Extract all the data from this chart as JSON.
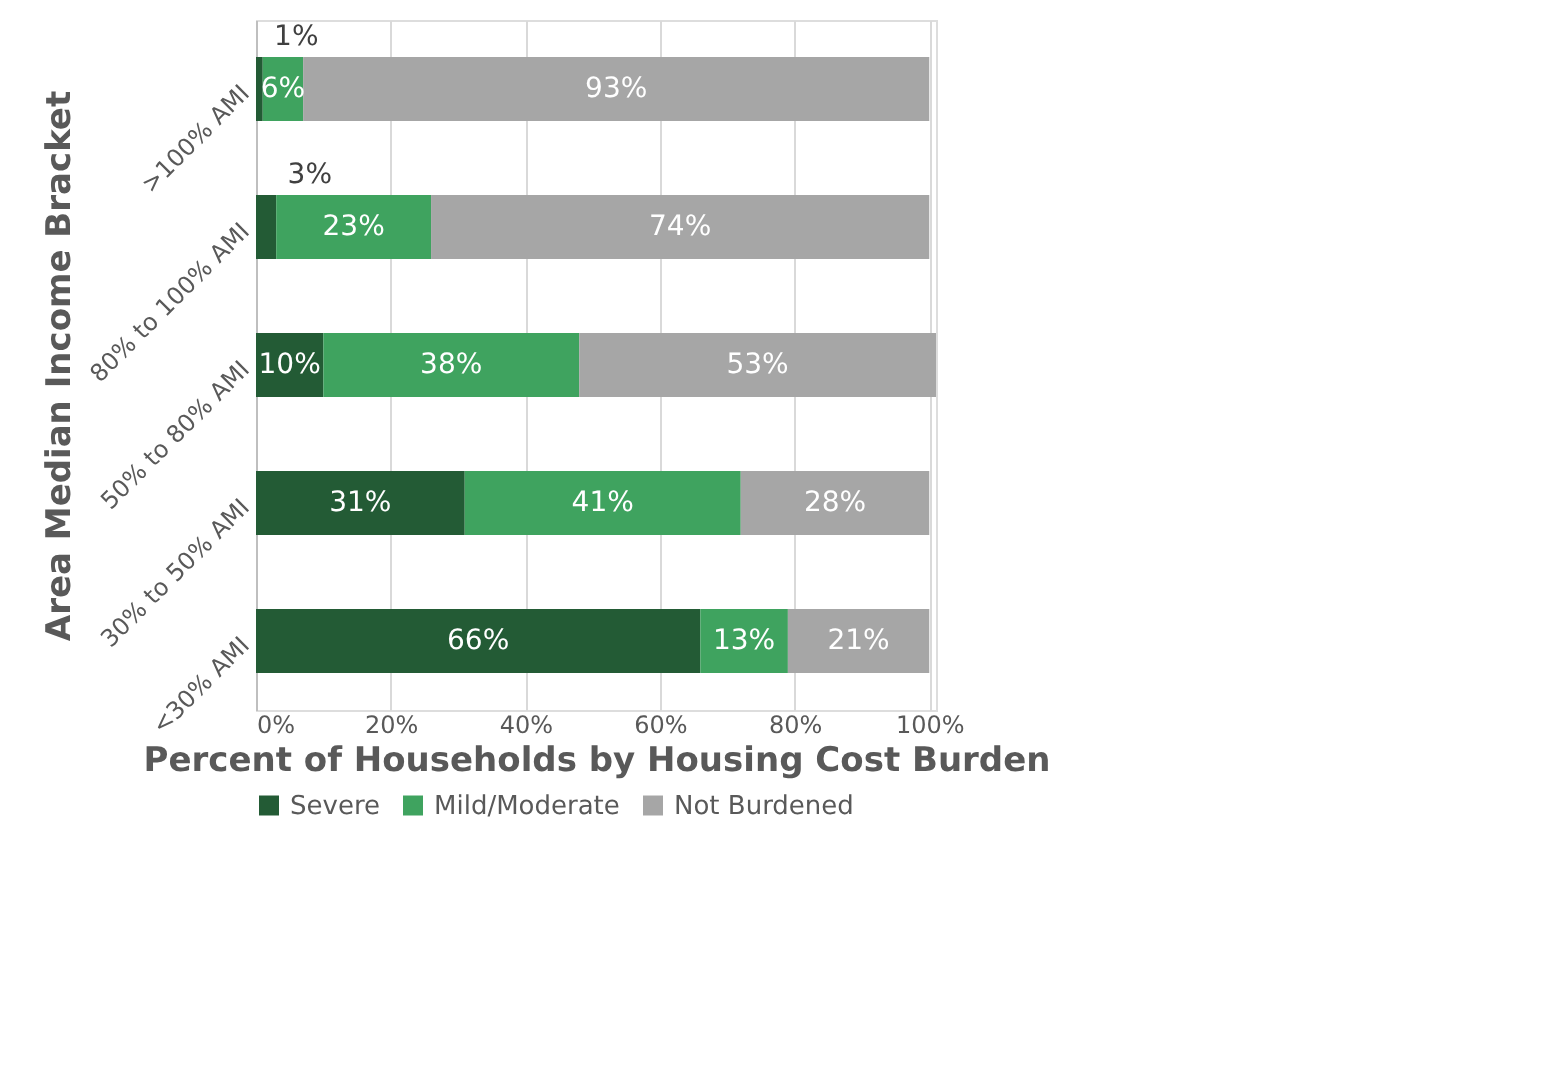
{
  "chart_data": {
    "type": "bar",
    "orientation": "horizontal",
    "stacked": true,
    "xlabel": "Percent of Households by Housing Cost Burden",
    "ylabel": "Area Median Income Bracket",
    "categories": [
      ">100% AMI",
      "80% to 100% AMI",
      "50% to 80% AMI",
      "30% to 50% AMI",
      "<30% AMI"
    ],
    "series": [
      {
        "name": "Severe",
        "color": "#235b35",
        "values": [
          1,
          3,
          10,
          31,
          66
        ],
        "value_labels": [
          "1%",
          "3%",
          "10%",
          "31%",
          "66%"
        ]
      },
      {
        "name": "Mild/Moderate",
        "color": "#3fa35f",
        "values": [
          6,
          23,
          38,
          41,
          13
        ],
        "value_labels": [
          "6%",
          "23%",
          "38%",
          "41%",
          "13%"
        ]
      },
      {
        "name": "Not Burdened",
        "color": "#a6a6a6",
        "values": [
          93,
          74,
          53,
          28,
          21
        ],
        "value_labels": [
          "93%",
          "74%",
          "53%",
          "28%",
          "21%"
        ]
      }
    ],
    "xlim": [
      0,
      101
    ],
    "xticks": [
      {
        "value": 0,
        "label": "0%"
      },
      {
        "value": 20,
        "label": "20%"
      },
      {
        "value": 40,
        "label": "40%"
      },
      {
        "value": 60,
        "label": "60%"
      },
      {
        "value": 80,
        "label": "80%"
      },
      {
        "value": 100,
        "label": "100%"
      }
    ],
    "grid": "x",
    "legend": "bottom"
  }
}
